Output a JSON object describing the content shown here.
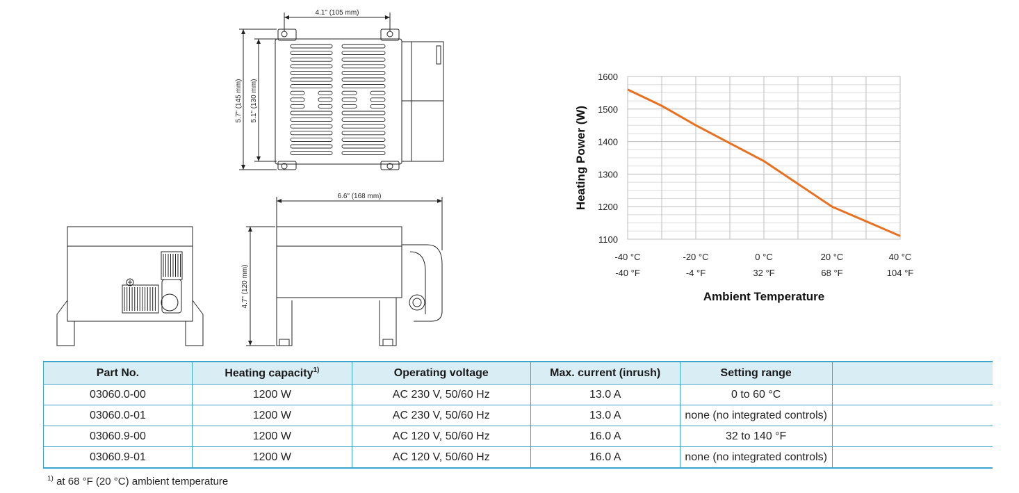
{
  "drawings": {
    "dim_width_top": "4.1\" (105 mm)",
    "dim_height_outer": "5.7\" (145 mm)",
    "dim_height_inner": "5.1\" (130 mm)",
    "dim_length_side": "6.6\" (168 mm)",
    "dim_height_side": "4.7\" (120 mm)"
  },
  "chart_data": {
    "type": "line",
    "xlabel": "Ambient Temperature",
    "ylabel": "Heating Power (W)",
    "ylim": [
      1100,
      1600
    ],
    "yticks": [
      1600,
      1500,
      1400,
      1300,
      1200,
      1100
    ],
    "xlim": [
      -40,
      40
    ],
    "xticks_c": [
      "-40 °C",
      "-20 °C",
      "0 °C",
      "20 °C",
      "40 °C"
    ],
    "xticks_f": [
      "-40 °F",
      "-4 °F",
      "32 °F",
      "68 °F",
      "104 °F"
    ],
    "grid": true,
    "line_color": "#e8701e",
    "x": [
      -40,
      -30,
      -20,
      -10,
      0,
      10,
      20,
      30,
      40
    ],
    "y": [
      1560,
      1510,
      1450,
      1395,
      1340,
      1270,
      1200,
      1155,
      1110
    ]
  },
  "table": {
    "headers": [
      "Part No.",
      "Heating capacity",
      "Operating voltage",
      "Max. current (inrush)",
      "Setting range",
      ""
    ],
    "heating_sup": "1)",
    "rows": [
      [
        "03060.0-00",
        "1200 W",
        "AC 230 V, 50/60 Hz",
        "13.0 A",
        "0 to 60 °C",
        ""
      ],
      [
        "03060.0-01",
        "1200 W",
        "AC 230 V, 50/60 Hz",
        "13.0 A",
        "none (no integrated controls)",
        ""
      ],
      [
        "03060.9-00",
        "1200 W",
        "AC 120 V, 50/60 Hz",
        "16.0 A",
        "32 to 140 °F",
        ""
      ],
      [
        "03060.9-01",
        "1200 W",
        "AC 120 V, 50/60 Hz",
        "16.0 A",
        "none (no integrated controls)",
        ""
      ]
    ]
  },
  "footnote": {
    "mark": "1)",
    "text": "at 68 °F (20 °C) ambient temperature"
  }
}
